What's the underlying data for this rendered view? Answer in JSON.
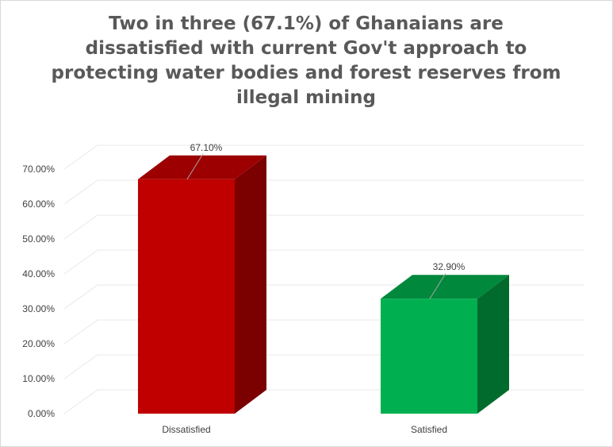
{
  "chart_data": {
    "type": "bar",
    "title": "Two in three (67.1%) of Ghanaians are dissatisfied with current Gov't approach to protecting water bodies and forest reserves from illegal mining",
    "categories": [
      "Dissatisfied",
      "Satisfied"
    ],
    "values": [
      67.1,
      32.9
    ],
    "data_labels": [
      "67.10%",
      "32.90%"
    ],
    "y_ticks": [
      "0.00%",
      "10.00%",
      "20.00%",
      "30.00%",
      "40.00%",
      "50.00%",
      "60.00%",
      "70.00%"
    ],
    "ylim": [
      0,
      70
    ],
    "xlabel": "",
    "ylabel": "",
    "grid": true,
    "style": "3d-column",
    "colors": {
      "Dissatisfied": {
        "front": "#c00000",
        "side": "#7b0000",
        "top": "#9c0000"
      },
      "Satisfied": {
        "front": "#00b050",
        "side": "#006b2c",
        "top": "#00883c"
      },
      "grid": "#e8e8e8",
      "tick_text": "#404040",
      "title_text": "#595959"
    }
  }
}
